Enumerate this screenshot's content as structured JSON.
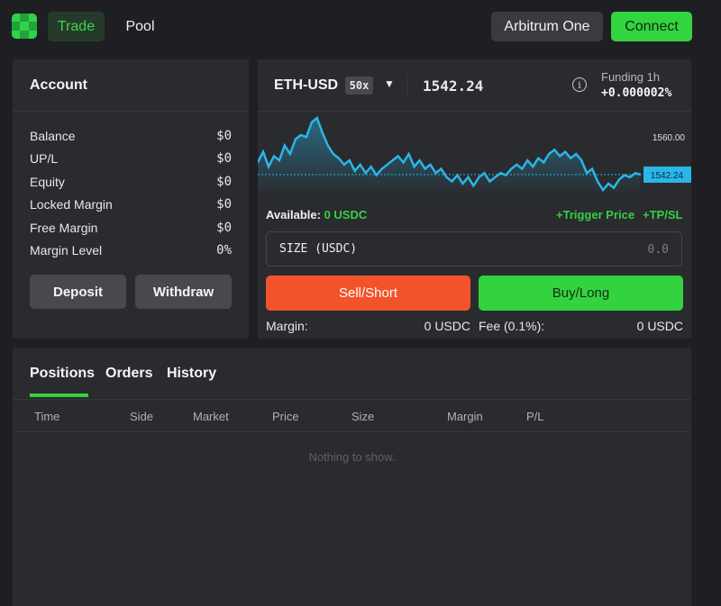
{
  "header": {
    "logo_icon": "grid-logo-icon",
    "nav": [
      {
        "label": "Trade",
        "active": true
      },
      {
        "label": "Pool",
        "active": false
      }
    ],
    "network_label": "Arbitrum One",
    "connect_label": "Connect"
  },
  "account": {
    "title": "Account",
    "rows": [
      {
        "label": "Balance",
        "value": "$0"
      },
      {
        "label": "UP/L",
        "value": "$0"
      },
      {
        "label": "Equity",
        "value": "$0"
      },
      {
        "label": "Locked Margin",
        "value": "$0"
      },
      {
        "label": "Free Margin",
        "value": "$0"
      },
      {
        "label": "Margin Level",
        "value": "0%"
      }
    ],
    "deposit_label": "Deposit",
    "withdraw_label": "Withdraw"
  },
  "trade": {
    "pair": "ETH-USD",
    "leverage": "50x",
    "price": "1542.24",
    "funding_label": "Funding 1h",
    "funding_value": "+0.000002%",
    "available_label": "Available:",
    "available_value": "0 USDC",
    "trigger_label": "+Trigger Price",
    "tpsl_label": "+TP/SL",
    "size_label": "SIZE (USDC)",
    "size_placeholder": "0.0",
    "sell_label": "Sell/Short",
    "buy_label": "Buy/Long",
    "margin_label": "Margin:",
    "margin_value": "0 USDC",
    "fee_label": "Fee (0.1%):",
    "fee_value": "0 USDC",
    "colors": {
      "sell": "#f2532b",
      "buy": "#33d33f",
      "accent": "#34d044",
      "line": "#29b6e8"
    }
  },
  "chart_data": {
    "type": "line",
    "tick_labels": [
      "1560.00"
    ],
    "last_price_label": "1542.24",
    "current_value": 1542.24,
    "y_ticks": [
      1560.0
    ],
    "values": [
      1548,
      1553,
      1546,
      1551,
      1549,
      1556,
      1552,
      1559,
      1561,
      1560,
      1567,
      1569,
      1562,
      1556,
      1552,
      1550,
      1547,
      1549,
      1544,
      1547,
      1543,
      1546,
      1542,
      1545,
      1547,
      1549,
      1551,
      1548,
      1552,
      1546,
      1549,
      1545,
      1547,
      1543,
      1545,
      1541,
      1539,
      1542,
      1538,
      1541,
      1537,
      1541,
      1543,
      1539,
      1541,
      1543,
      1542,
      1545,
      1547,
      1545,
      1549,
      1546,
      1550,
      1548,
      1552,
      1554,
      1551,
      1553,
      1550,
      1552,
      1549,
      1543,
      1545,
      1539,
      1535,
      1538,
      1536,
      1540,
      1542,
      1541,
      1543,
      1542.24
    ],
    "ylim": [
      1532,
      1572
    ],
    "grid": false
  },
  "positions": {
    "tabs": [
      "Positions",
      "Orders",
      "History"
    ],
    "columns": [
      "Time",
      "Side",
      "Market",
      "Price",
      "Size",
      "Margin",
      "P/L"
    ],
    "empty_text": "Nothing to show."
  }
}
